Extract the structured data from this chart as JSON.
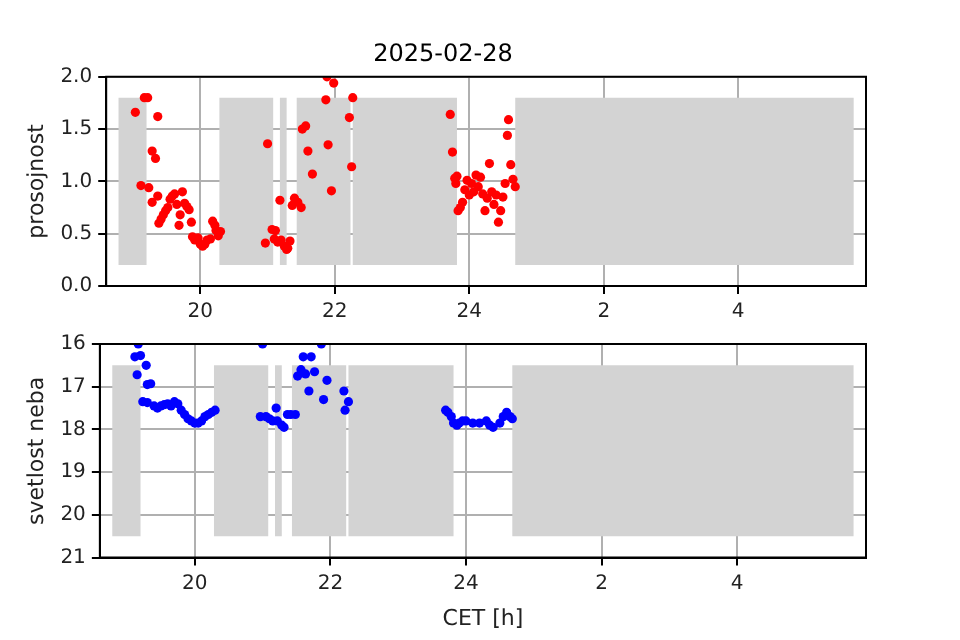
{
  "chart_data": [
    {
      "type": "scatter",
      "title": "2025-02-28",
      "ylabel": "prosojnost",
      "marker": "circle",
      "grid": true,
      "xlim": [
        "2025-02-28T18:36",
        "2025-03-01T05:54"
      ],
      "xticks": [
        {
          "value": "2025-02-28T20:00",
          "label": "20"
        },
        {
          "value": "2025-02-28T22:00",
          "label": "22"
        },
        {
          "value": "2025-03-01T00:00",
          "label": "24"
        },
        {
          "value": "2025-03-01T02:00",
          "label": "2"
        },
        {
          "value": "2025-03-01T04:00",
          "label": "4"
        }
      ],
      "ylim": [
        0,
        2
      ],
      "yticks": [
        {
          "value": 0,
          "label": "0.0"
        },
        {
          "value": 0.5,
          "label": "0.5"
        },
        {
          "value": 1,
          "label": "1.0"
        },
        {
          "value": 1.5,
          "label": "1.5"
        },
        {
          "value": 2,
          "label": "2.0"
        }
      ],
      "bands": [
        {
          "axis": "x",
          "from": "2025-02-28T18:47",
          "to": "2025-02-28T19:12",
          "color": "#d3d3d3"
        },
        {
          "axis": "x",
          "from": "2025-02-28T20:17",
          "to": "2025-02-28T21:05",
          "color": "#d3d3d3"
        },
        {
          "axis": "x",
          "from": "2025-02-28T21:11",
          "to": "2025-02-28T21:17",
          "color": "#d3d3d3"
        },
        {
          "axis": "x",
          "from": "2025-02-28T21:26",
          "to": "2025-02-28T22:14",
          "color": "#d3d3d3"
        },
        {
          "axis": "x",
          "from": "2025-02-28T22:16",
          "to": "2025-02-28T23:49",
          "color": "#d3d3d3"
        },
        {
          "axis": "x",
          "from": "2025-03-01T00:41",
          "to": "2025-03-01T05:43",
          "color": "#d3d3d3"
        }
      ],
      "series": [
        {
          "color": "#ff0000",
          "x": [
            "2025-02-28T19:02",
            "2025-02-28T19:10",
            "2025-02-28T19:13",
            "2025-02-28T19:22",
            "2025-02-28T19:17",
            "2025-02-28T19:20",
            "2025-02-28T19:07",
            "2025-02-28T19:14",
            "2025-02-28T19:17",
            "2025-02-28T19:22",
            "2025-02-28T19:23",
            "2025-02-28T19:25",
            "2025-02-28T19:27",
            "2025-02-28T19:29",
            "2025-02-28T19:31",
            "2025-02-28T19:33",
            "2025-02-28T19:35",
            "2025-02-28T19:37",
            "2025-02-28T19:39",
            "2025-02-28T19:41",
            "2025-02-28T19:42",
            "2025-02-28T19:44",
            "2025-02-28T19:46",
            "2025-02-28T19:48",
            "2025-02-28T19:50",
            "2025-02-28T19:52",
            "2025-02-28T19:53",
            "2025-02-28T19:55",
            "2025-02-28T19:58",
            "2025-02-28T20:00",
            "2025-02-28T20:02",
            "2025-02-28T20:04",
            "2025-02-28T20:06",
            "2025-02-28T20:09",
            "2025-02-28T20:11",
            "2025-02-28T20:13",
            "2025-02-28T20:14",
            "2025-02-28T20:16",
            "2025-02-28T20:18",
            "2025-02-28T21:00",
            "2025-02-28T20:58",
            "2025-02-28T21:04",
            "2025-02-28T21:07",
            "2025-02-28T21:11",
            "2025-02-28T21:06",
            "2025-02-28T21:09",
            "2025-02-28T21:12",
            "2025-02-28T21:15",
            "2025-02-28T21:17",
            "2025-02-28T21:18",
            "2025-02-28T21:20",
            "2025-02-28T21:22",
            "2025-02-28T21:24",
            "2025-02-28T21:27",
            "2025-02-28T21:30",
            "2025-02-28T21:31",
            "2025-02-28T21:34",
            "2025-02-28T21:36",
            "2025-02-28T21:40",
            "2025-02-28T21:53",
            "2025-02-28T21:52",
            "2025-02-28T21:54",
            "2025-02-28T21:57",
            "2025-02-28T21:59",
            "2025-02-28T22:13",
            "2025-02-28T22:15",
            "2025-02-28T22:16",
            "2025-02-28T23:43",
            "2025-02-28T23:45",
            "2025-02-28T23:47",
            "2025-02-28T23:48",
            "2025-02-28T23:49",
            "2025-02-28T23:50",
            "2025-02-28T23:52",
            "2025-02-28T23:54",
            "2025-02-28T23:56",
            "2025-02-28T23:58",
            "2025-03-01T00:00",
            "2025-03-01T00:02",
            "2025-03-01T00:04",
            "2025-03-01T00:06",
            "2025-03-01T00:08",
            "2025-03-01T00:10",
            "2025-03-01T00:12",
            "2025-03-01T00:14",
            "2025-03-01T00:16",
            "2025-03-01T00:18",
            "2025-03-01T00:20",
            "2025-03-01T00:22",
            "2025-03-01T00:24",
            "2025-03-01T00:26",
            "2025-03-01T00:28",
            "2025-03-01T00:30",
            "2025-03-01T00:32",
            "2025-03-01T00:34",
            "2025-03-01T00:35",
            "2025-03-01T00:37",
            "2025-03-01T00:39",
            "2025-03-01T00:41"
          ],
          "values": [
            1.66,
            1.8,
            1.8,
            1.62,
            1.29,
            1.22,
            0.96,
            0.94,
            0.8,
            0.86,
            0.6,
            0.64,
            0.68,
            0.72,
            0.75,
            0.83,
            0.86,
            0.88,
            0.78,
            0.58,
            0.68,
            0.9,
            0.79,
            0.76,
            0.73,
            0.61,
            0.47,
            0.44,
            0.46,
            0.4,
            0.38,
            0.4,
            0.44,
            0.45,
            0.62,
            0.58,
            0.53,
            0.48,
            0.52,
            1.36,
            0.41,
            0.54,
            0.53,
            0.82,
            0.45,
            0.42,
            0.44,
            0.38,
            0.35,
            0.36,
            0.43,
            0.77,
            0.84,
            0.8,
            0.75,
            1.5,
            1.53,
            1.29,
            1.07,
            2.0,
            1.78,
            1.35,
            0.91,
            1.94,
            1.61,
            1.14,
            1.8,
            1.64,
            1.28,
            1.03,
            0.98,
            1.05,
            0.72,
            0.75,
            0.8,
            0.92,
            1.01,
            0.87,
            0.98,
            0.9,
            1.06,
            0.95,
            1.04,
            0.88,
            0.72,
            0.84,
            1.17,
            0.9,
            0.78,
            0.87,
            0.61,
            0.72,
            0.85,
            0.98,
            1.44,
            1.59,
            1.16,
            1.02,
            0.95
          ]
        }
      ]
    },
    {
      "type": "scatter",
      "ylabel": "svetlost neba",
      "xlabel": "CET [h]",
      "marker": "circle",
      "grid": true,
      "xlim": [
        "2025-02-28T18:36",
        "2025-03-01T05:54"
      ],
      "xticks": [
        {
          "value": "2025-02-28T20:00",
          "label": "20"
        },
        {
          "value": "2025-02-28T22:00",
          "label": "22"
        },
        {
          "value": "2025-03-01T00:00",
          "label": "24"
        },
        {
          "value": "2025-03-01T02:00",
          "label": "2"
        },
        {
          "value": "2025-03-01T04:00",
          "label": "4"
        }
      ],
      "ylim": [
        21,
        16
      ],
      "yticks": [
        16,
        17,
        18,
        19,
        20,
        21
      ],
      "bands": [
        {
          "axis": "x",
          "from": "2025-02-28T18:47",
          "to": "2025-02-28T19:12",
          "color": "#d3d3d3"
        },
        {
          "axis": "x",
          "from": "2025-02-28T20:17",
          "to": "2025-02-28T21:05",
          "color": "#d3d3d3"
        },
        {
          "axis": "x",
          "from": "2025-02-28T21:11",
          "to": "2025-02-28T21:17",
          "color": "#d3d3d3"
        },
        {
          "axis": "x",
          "from": "2025-02-28T21:26",
          "to": "2025-02-28T22:14",
          "color": "#d3d3d3"
        },
        {
          "axis": "x",
          "from": "2025-02-28T22:16",
          "to": "2025-02-28T23:49",
          "color": "#d3d3d3"
        },
        {
          "axis": "x",
          "from": "2025-03-01T00:41",
          "to": "2025-03-01T05:43",
          "color": "#d3d3d3"
        }
      ],
      "series": [
        {
          "color": "#0000ff",
          "x": [
            "2025-02-28T19:10",
            "2025-02-28T19:07",
            "2025-02-28T19:12",
            "2025-02-28T19:09",
            "2025-02-28T19:17",
            "2025-02-28T19:18",
            "2025-02-28T19:21",
            "2025-02-28T19:14",
            "2025-02-28T19:18",
            "2025-02-28T19:24",
            "2025-02-28T19:27",
            "2025-02-28T19:30",
            "2025-02-28T19:33",
            "2025-02-28T19:36",
            "2025-02-28T19:39",
            "2025-02-28T19:42",
            "2025-02-28T19:45",
            "2025-02-28T19:48",
            "2025-02-28T19:51",
            "2025-02-28T19:54",
            "2025-02-28T19:57",
            "2025-02-28T20:00",
            "2025-02-28T20:03",
            "2025-02-28T20:06",
            "2025-02-28T20:09",
            "2025-02-28T20:12",
            "2025-02-28T20:15",
            "2025-02-28T20:18",
            "2025-02-28T20:58",
            "2025-02-28T21:00",
            "2025-02-28T21:03",
            "2025-02-28T21:06",
            "2025-02-28T21:09",
            "2025-02-28T21:12",
            "2025-02-28T21:13",
            "2025-02-28T21:17",
            "2025-02-28T21:19",
            "2025-02-28T21:22",
            "2025-02-28T21:25",
            "2025-02-28T21:29",
            "2025-02-28T21:31",
            "2025-02-28T21:34",
            "2025-02-28T21:36",
            "2025-02-28T21:38",
            "2025-02-28T21:41",
            "2025-02-28T21:43",
            "2025-02-28T21:46",
            "2025-02-28T21:52",
            "2025-02-28T21:54",
            "2025-02-28T21:57",
            "2025-02-28T22:12",
            "2025-02-28T22:13",
            "2025-02-28T22:16",
            "2025-02-28T23:42",
            "2025-02-28T23:44",
            "2025-02-28T23:47",
            "2025-02-28T23:49",
            "2025-02-28T23:52",
            "2025-02-28T23:54",
            "2025-02-28T23:57",
            "2025-03-01T00:00",
            "2025-03-01T00:06",
            "2025-03-01T00:12",
            "2025-03-01T00:18",
            "2025-03-01T00:21",
            "2025-03-01T00:24",
            "2025-03-01T00:30",
            "2025-03-01T00:33",
            "2025-03-01T00:36",
            "2025-03-01T00:39",
            "2025-03-01T00:41"
          ],
          "values": [
            16.0,
            16.3,
            16.27,
            16.72,
            16.5,
            16.95,
            16.93,
            17.35,
            17.37,
            17.45,
            17.5,
            17.45,
            17.42,
            17.4,
            17.45,
            17.35,
            17.4,
            17.55,
            17.65,
            17.75,
            17.8,
            17.85,
            17.85,
            17.8,
            17.7,
            17.65,
            17.6,
            17.55,
            17.7,
            16.0,
            17.7,
            17.75,
            17.8,
            17.5,
            17.8,
            17.9,
            17.95,
            17.65,
            17.65,
            17.65,
            16.75,
            16.6,
            16.3,
            16.7,
            17.1,
            16.3,
            16.65,
            16.0,
            17.3,
            16.85,
            17.1,
            17.55,
            17.35,
            17.55,
            17.6,
            17.7,
            17.85,
            17.9,
            17.85,
            17.8,
            17.8,
            17.85,
            17.85,
            17.8,
            17.9,
            17.95,
            17.85,
            17.7,
            17.6,
            17.7,
            17.75
          ]
        }
      ]
    }
  ]
}
